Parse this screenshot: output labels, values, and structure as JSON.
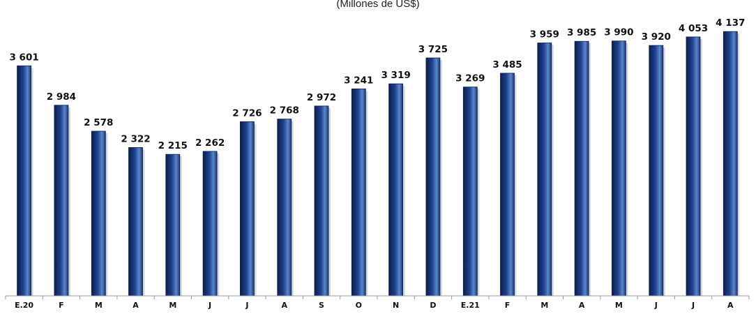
{
  "chart_data": {
    "type": "bar",
    "subtitle": "(Millones de US$)",
    "categories": [
      "E.20",
      "F",
      "M",
      "A",
      "M",
      "J",
      "J",
      "A",
      "S",
      "O",
      "N",
      "D",
      "E.21",
      "F",
      "M",
      "A",
      "M",
      "J",
      "J",
      "A"
    ],
    "values": [
      3601,
      2984,
      2578,
      2322,
      2215,
      2262,
      2726,
      2768,
      2972,
      3241,
      3319,
      3725,
      3269,
      3485,
      3959,
      3985,
      3990,
      3920,
      4053,
      4137
    ],
    "value_labels": [
      "3 601",
      "2 984",
      "2 578",
      "2 322",
      "2 215",
      "2 262",
      "2 726",
      "2 768",
      "2 972",
      "3 241",
      "3 319",
      "3 725",
      "3 269",
      "3 485",
      "3 959",
      "3 985",
      "3 990",
      "3 920",
      "4 053",
      "4 137"
    ],
    "ylim": [
      0,
      4500
    ],
    "grid": false,
    "legend": "none",
    "colors": {
      "bar_dark": "#0c1f4a",
      "bar_mid": "#1f4290",
      "bar_light": "#5b86cc",
      "axis": "#999999"
    }
  }
}
